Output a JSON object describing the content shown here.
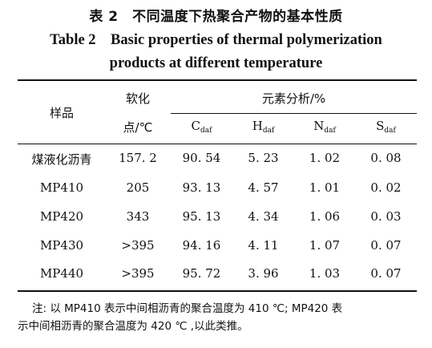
{
  "title_zh": "表 2　不同温度下热聚合产物的基本性质",
  "title_en_line1": "Table 2　Basic properties of thermal polymerization",
  "title_en_line2": "products at different temperature",
  "headers": {
    "sample": "样品",
    "softening_line1": "软化",
    "softening_line2": "点/℃",
    "elemental": "元素分析/%",
    "c": {
      "letter": "C",
      "sub": "daf"
    },
    "h": {
      "letter": "H",
      "sub": "daf"
    },
    "n": {
      "letter": "N",
      "sub": "daf"
    },
    "s": {
      "letter": "S",
      "sub": "daf"
    }
  },
  "rows": [
    {
      "sample": "煤液化沥青",
      "softening": "157. 2",
      "c": "90. 54",
      "h": "5. 23",
      "n": "1. 02",
      "s": "0. 08"
    },
    {
      "sample": "MP410",
      "softening": "205",
      "c": "93. 13",
      "h": "4. 57",
      "n": "1. 01",
      "s": "0. 02"
    },
    {
      "sample": "MP420",
      "softening": "343",
      "c": "95. 13",
      "h": "4. 34",
      "n": "1. 06",
      "s": "0. 03"
    },
    {
      "sample": "MP430",
      "softening": ">395",
      "c": "94. 16",
      "h": "4. 11",
      "n": "1. 07",
      "s": "0. 07"
    },
    {
      "sample": "MP440",
      "softening": ">395",
      "c": "95. 72",
      "h": "3. 96",
      "n": "1. 03",
      "s": "0. 07"
    }
  ],
  "note_line1": "注: 以 MP410 表示中间相沥青的聚合温度为 410 ℃; MP420 表",
  "note_line2": "示中间相沥青的聚合温度为 420 ℃ ,以此类推。"
}
